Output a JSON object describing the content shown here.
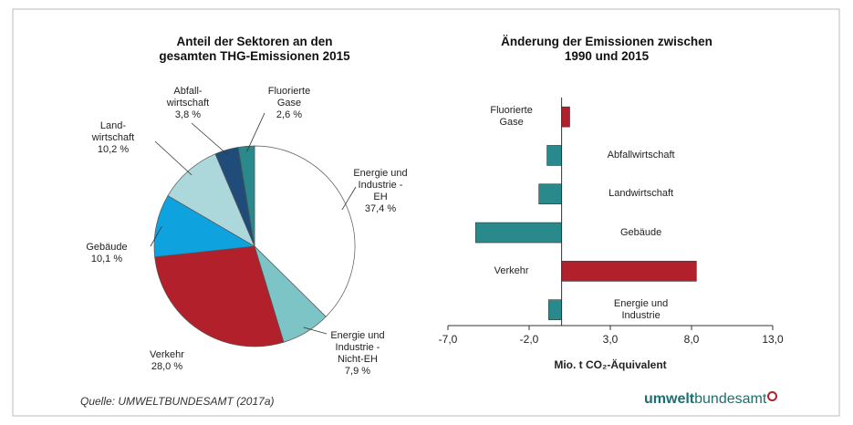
{
  "chart_data": [
    {
      "type": "pie",
      "title": "Anteil der Sektoren an den\ngesamten THG-Emissionen 2015",
      "categories": [
        "Energie und\nIndustrie -\nEH",
        "Energie und\nIndustrie -\nNicht-EH",
        "Verkehr",
        "Gebäude",
        "Land-\nwirtschaft",
        "Abfall-\nwirtschaft",
        "Fluorierte\nGase"
      ],
      "values": [
        37.4,
        7.9,
        28.0,
        10.1,
        10.2,
        3.8,
        2.6
      ],
      "value_labels": [
        "37,4 %",
        "7,9 %",
        "28,0 %",
        "10,1 %",
        "10,2 %",
        "3,8 %",
        "2,6 %"
      ],
      "colors": [
        "#ffffff",
        "#7cc4c5",
        "#b2202b",
        "#0ea2df",
        "#acd8db",
        "#1f4c78",
        "#2a8a8b"
      ]
    },
    {
      "type": "hbar",
      "title": "Änderung der Emissionen zwischen\n1990 und 2015",
      "categories": [
        "Fluorierte\nGase",
        "Abfallwirtschaft",
        "Landwirtschaft",
        "Gebäude",
        "Verkehr",
        "Energie und\nIndustrie"
      ],
      "values": [
        0.5,
        -0.9,
        -1.4,
        -5.3,
        8.3,
        -0.8
      ],
      "colors": [
        "#b2202b",
        "#2a8a8b",
        "#2a8a8b",
        "#2a8a8b",
        "#b2202b",
        "#2a8a8b"
      ],
      "xlim": [
        -7,
        13
      ],
      "xticks": [
        {
          "value": -7,
          "label": "-7,0"
        },
        {
          "value": -2,
          "label": "-2,0"
        },
        {
          "value": 3,
          "label": "3,0"
        },
        {
          "value": 8,
          "label": "8,0"
        },
        {
          "value": 13,
          "label": "13,0"
        }
      ],
      "xlabel": "Mio. t CO₂-Äquivalent"
    }
  ],
  "source": "Quelle: UMWELTBUNDESAMT (2017a)",
  "logo": {
    "bold": "umwelt",
    "light": "bundesamt"
  }
}
